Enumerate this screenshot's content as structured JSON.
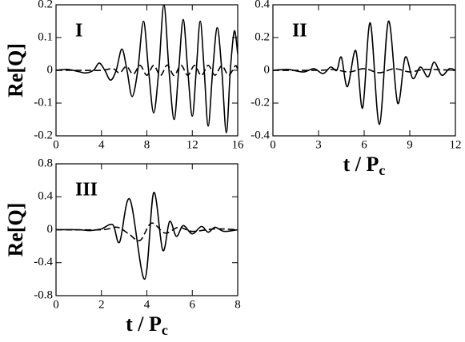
{
  "chart_data": [
    {
      "type": "line",
      "panel_label": "I",
      "y_label": "Re[Q]",
      "xlim": [
        0,
        16
      ],
      "xticks": [
        0,
        4,
        8,
        12,
        16
      ],
      "ylim": [
        -0.2,
        0.2
      ],
      "yticks": [
        -0.2,
        -0.1,
        0,
        0.1,
        0.2
      ],
      "series": [
        {
          "color": "#000000",
          "style": "solid",
          "x": [
            0,
            1,
            2,
            2.6,
            3.3,
            3.8,
            4.3,
            4.8,
            5.3,
            5.8,
            6.25,
            6.7,
            7.2,
            7.7,
            8.15,
            8.6,
            9.05,
            9.5,
            9.95,
            10.4,
            10.8,
            11.2,
            11.6,
            12,
            12.35,
            12.7,
            13.05,
            13.4,
            13.8,
            14.2,
            14.6,
            15,
            15.35,
            15.7,
            16
          ],
          "values": [
            0,
            0.003,
            -0.004,
            -0.008,
            0,
            0.022,
            0,
            -0.03,
            0,
            0.065,
            0,
            -0.08,
            0,
            0.15,
            0,
            -0.13,
            0,
            0.2,
            0,
            -0.15,
            0,
            0.155,
            0,
            -0.14,
            0,
            0.15,
            0,
            -0.17,
            0,
            0.13,
            0,
            -0.19,
            0,
            0.12,
            0.05
          ]
        },
        {
          "color": "#000000",
          "style": "dashed",
          "x": [
            0,
            2,
            4,
            5,
            5.6,
            6.2,
            6.8,
            7.4,
            8,
            8.6,
            9.2,
            9.8,
            10.4,
            11,
            11.6,
            12.2,
            12.8,
            13.4,
            14,
            14.6,
            15.2,
            15.8,
            16
          ],
          "values": [
            0,
            0,
            0,
            0.005,
            -0.008,
            0.012,
            -0.012,
            0.015,
            -0.015,
            0.015,
            -0.016,
            0.016,
            -0.016,
            0.016,
            -0.015,
            0.015,
            -0.016,
            0.015,
            -0.015,
            0.014,
            -0.015,
            0.014,
            0
          ]
        }
      ]
    },
    {
      "type": "line",
      "panel_label": "II",
      "x_label": "t / P",
      "x_label_subscript": "c",
      "xlim": [
        0,
        12
      ],
      "xticks": [
        0,
        3,
        6,
        9,
        12
      ],
      "ylim": [
        -0.4,
        0.4
      ],
      "yticks": [
        -0.4,
        -0.2,
        0,
        0.2,
        0.4
      ],
      "series": [
        {
          "color": "#000000",
          "style": "solid",
          "x": [
            0,
            1,
            2,
            2.7,
            3.3,
            3.8,
            4.2,
            4.5,
            4.9,
            5.45,
            5.9,
            6.4,
            7.0,
            7.6,
            8.2,
            8.7,
            9.2,
            9.7,
            10.2,
            10.6,
            11.1,
            11.6,
            12
          ],
          "values": [
            0,
            0.005,
            -0.01,
            0.01,
            -0.02,
            0.02,
            0,
            0.08,
            -0.1,
            0.12,
            -0.23,
            0.29,
            -0.33,
            0.3,
            -0.2,
            0.08,
            -0.05,
            0.02,
            -0.04,
            0.05,
            -0.03,
            0.01,
            0
          ]
        },
        {
          "color": "#000000",
          "style": "dashed",
          "x": [
            0,
            3,
            4,
            5,
            6,
            7,
            8,
            9,
            10,
            12
          ],
          "values": [
            0,
            0,
            0.005,
            -0.01,
            0.01,
            -0.015,
            0.01,
            -0.01,
            0.005,
            0
          ]
        }
      ]
    },
    {
      "type": "line",
      "panel_label": "III",
      "y_label": "Re[Q]",
      "x_label": "t / P",
      "x_label_subscript": "c",
      "xlim": [
        0,
        8
      ],
      "xticks": [
        0,
        2,
        4,
        6,
        8
      ],
      "ylim": [
        -0.8,
        0.8
      ],
      "yticks": [
        -0.8,
        -0.4,
        0,
        0.4,
        0.8
      ],
      "series": [
        {
          "color": "#000000",
          "style": "solid",
          "x": [
            0,
            1,
            1.5,
            2,
            2.5,
            2.8,
            3.25,
            3.9,
            4.3,
            4.7,
            5.0,
            5.3,
            5.6,
            6.0,
            6.4,
            6.7,
            7.0,
            7.4,
            8
          ],
          "values": [
            0,
            0,
            -0.01,
            0.01,
            0.06,
            -0.15,
            0.37,
            -0.6,
            0.45,
            -0.25,
            0.1,
            -0.08,
            0.05,
            -0.05,
            0.04,
            -0.03,
            0.03,
            -0.02,
            0
          ]
        },
        {
          "color": "#000000",
          "style": "dashed",
          "x": [
            0,
            2,
            2.7,
            3.2,
            3.7,
            4.2,
            4.8,
            5.4,
            6,
            7,
            8
          ],
          "values": [
            0,
            0,
            0.03,
            -0.05,
            -0.13,
            0.08,
            -0.04,
            0.03,
            -0.02,
            0.01,
            0
          ]
        }
      ]
    }
  ]
}
